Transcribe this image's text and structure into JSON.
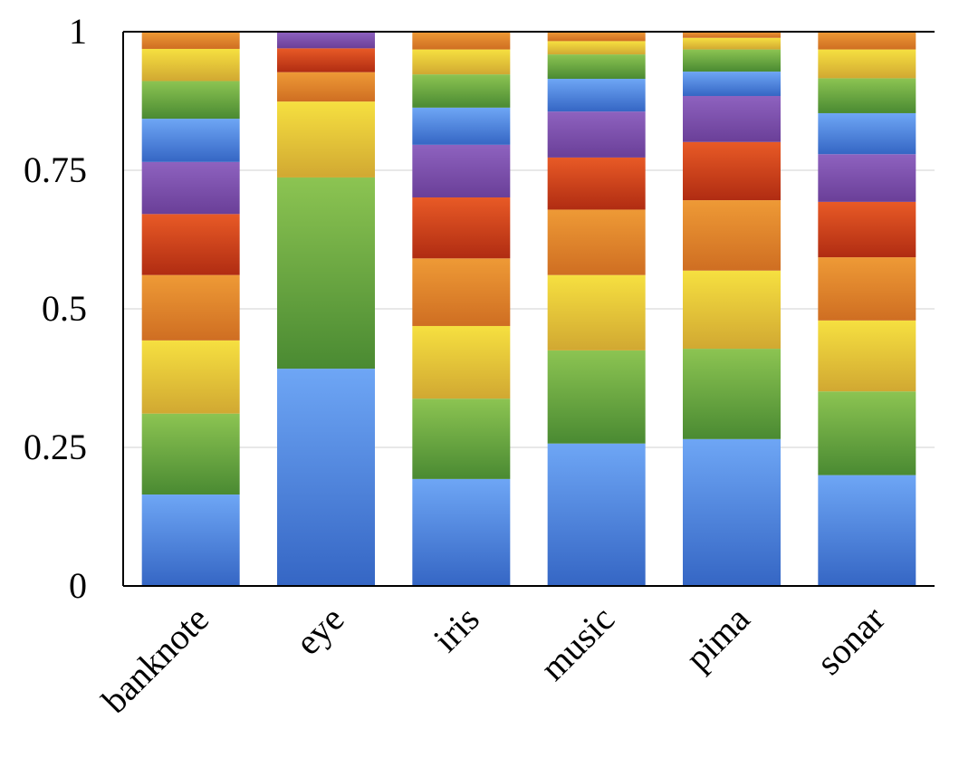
{
  "chart_data": {
    "type": "bar",
    "stacked": true,
    "categories": [
      "banknote",
      "eye",
      "iris",
      "music",
      "pima",
      "sonar"
    ],
    "ylim": [
      0,
      1
    ],
    "yticks": [
      "0",
      "0.25",
      "0.5",
      "0.75",
      "1"
    ],
    "ytick_values": [
      0,
      0.25,
      0.5,
      0.75,
      1
    ],
    "grid": true,
    "legend": false,
    "series": [
      {
        "color": "#4a86e0",
        "values": [
          0.165,
          0.392,
          0.193,
          0.257,
          0.265,
          0.2
        ]
      },
      {
        "color": "#6aaa44",
        "values": [
          0.146,
          0.345,
          0.145,
          0.168,
          0.163,
          0.151
        ]
      },
      {
        "color": "#e8c53a",
        "values": [
          0.132,
          0.137,
          0.131,
          0.136,
          0.141,
          0.128
        ]
      },
      {
        "color": "#e07c2a",
        "values": [
          0.118,
          0.053,
          0.122,
          0.118,
          0.127,
          0.114
        ]
      },
      {
        "color": "#d2461d",
        "values": [
          0.11,
          0.043,
          0.11,
          0.094,
          0.105,
          0.1
        ]
      },
      {
        "color": "#7c53ac",
        "values": [
          0.094,
          0.03,
          0.095,
          0.083,
          0.083,
          0.086
        ]
      },
      {
        "color": "#4a86e0",
        "values": [
          0.078,
          0,
          0.067,
          0.059,
          0.044,
          0.074
        ]
      },
      {
        "color": "#6aaa44",
        "values": [
          0.068,
          0,
          0.06,
          0.044,
          0.04,
          0.063
        ]
      },
      {
        "color": "#e8c53a",
        "values": [
          0.058,
          0,
          0.045,
          0.024,
          0.021,
          0.052
        ]
      },
      {
        "color": "#e07c2a",
        "values": [
          0.031,
          0,
          0.032,
          0.017,
          0.011,
          0.032
        ]
      }
    ]
  }
}
